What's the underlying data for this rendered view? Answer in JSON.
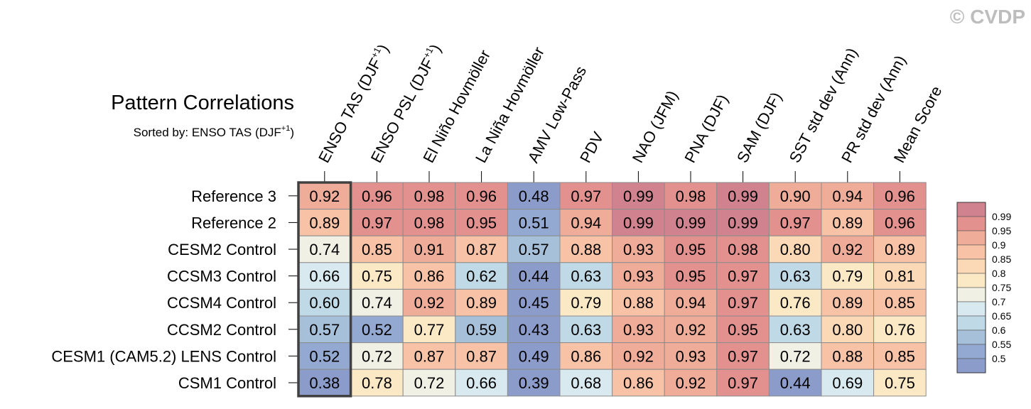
{
  "watermark": "© CVDP",
  "chart_data": {
    "type": "heatmap",
    "title": "Pattern Correlations",
    "subtitle_prefix": "Sorted by: ENSO TAS (DJF",
    "subtitle_sup": "+1",
    "subtitle_suffix": ")",
    "columns": [
      {
        "text": "ENSO TAS (DJF",
        "sup": "+1",
        "suffix": ")"
      },
      {
        "text": "ENSO PSL (DJF",
        "sup": "+1",
        "suffix": ")"
      },
      {
        "text": "El Niño Hovmöller",
        "sup": "",
        "suffix": ""
      },
      {
        "text": "La Niña Hovmöller",
        "sup": "",
        "suffix": ""
      },
      {
        "text": "AMV Low-Pass",
        "sup": "",
        "suffix": ""
      },
      {
        "text": "PDV",
        "sup": "",
        "suffix": ""
      },
      {
        "text": "NAO (JFM)",
        "sup": "",
        "suffix": ""
      },
      {
        "text": "PNA (DJF)",
        "sup": "",
        "suffix": ""
      },
      {
        "text": "SAM (DJF)",
        "sup": "",
        "suffix": ""
      },
      {
        "text": "SST std dev (Ann)",
        "sup": "",
        "suffix": ""
      },
      {
        "text": "PR std dev (Ann)",
        "sup": "",
        "suffix": ""
      },
      {
        "text": "Mean Score",
        "sup": "",
        "suffix": ""
      }
    ],
    "rows": [
      "Reference 3",
      "Reference 2",
      "CESM2 Control",
      "CCSM3 Control",
      "CCSM4 Control",
      "CCSM2 Control",
      "CESM1 (CAM5.2) LENS Control",
      "CSM1 Control"
    ],
    "values": [
      [
        "0.92",
        "0.96",
        "0.98",
        "0.96",
        "0.48",
        "0.97",
        "0.99",
        "0.98",
        "0.99",
        "0.90",
        "0.94",
        "0.96"
      ],
      [
        "0.89",
        "0.97",
        "0.98",
        "0.95",
        "0.51",
        "0.94",
        "0.99",
        "0.99",
        "0.99",
        "0.97",
        "0.89",
        "0.96"
      ],
      [
        "0.74",
        "0.85",
        "0.91",
        "0.87",
        "0.57",
        "0.88",
        "0.93",
        "0.95",
        "0.98",
        "0.80",
        "0.92",
        "0.89"
      ],
      [
        "0.66",
        "0.75",
        "0.86",
        "0.62",
        "0.44",
        "0.63",
        "0.93",
        "0.95",
        "0.97",
        "0.63",
        "0.79",
        "0.81"
      ],
      [
        "0.60",
        "0.74",
        "0.92",
        "0.89",
        "0.45",
        "0.79",
        "0.88",
        "0.94",
        "0.97",
        "0.76",
        "0.89",
        "0.85"
      ],
      [
        "0.57",
        "0.52",
        "0.77",
        "0.59",
        "0.43",
        "0.63",
        "0.93",
        "0.92",
        "0.95",
        "0.63",
        "0.80",
        "0.76"
      ],
      [
        "0.52",
        "0.72",
        "0.87",
        "0.87",
        "0.49",
        "0.86",
        "0.92",
        "0.93",
        "0.97",
        "0.72",
        "0.88",
        "0.85"
      ],
      [
        "0.38",
        "0.78",
        "0.72",
        "0.66",
        "0.39",
        "0.68",
        "0.86",
        "0.92",
        "0.97",
        "0.44",
        "0.69",
        "0.75"
      ]
    ],
    "sorted_column": 0,
    "colorbar": {
      "levels": [
        "0.99",
        "0.95",
        "0.9",
        "0.85",
        "0.8",
        "0.75",
        "0.7",
        "0.65",
        "0.6",
        "0.55",
        "0.5"
      ],
      "colors": [
        "#d0828f",
        "#e2918f",
        "#efac98",
        "#f7c2a6",
        "#fcd9b6",
        "#fbe9c6",
        "#f0f0e4",
        "#d9e9f0",
        "#bfd9e6",
        "#a6c0da",
        "#93a9d1",
        "#8b9ccb"
      ]
    }
  }
}
